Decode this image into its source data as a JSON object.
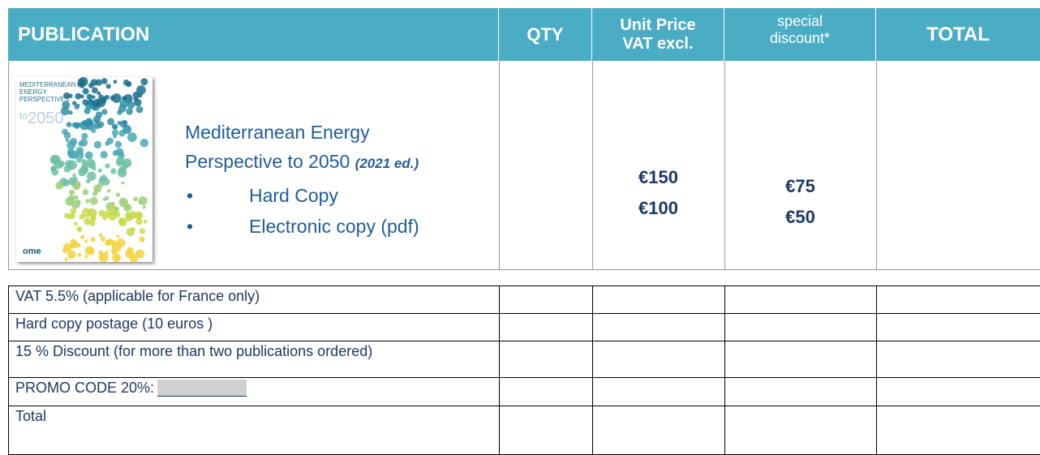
{
  "header": {
    "publication": "PUBLICATION",
    "qty": "QTY",
    "unit_price": [
      "Unit Price",
      "VAT excl."
    ],
    "special_discount": [
      "special",
      "discount*"
    ],
    "total": "TOTAL"
  },
  "product": {
    "cover": {
      "lines": [
        "MEDITERRANEAN",
        "ENERGY",
        "PERSPECTIVES"
      ],
      "to": "to",
      "year": "2050",
      "logo": "ome"
    },
    "title_lines": [
      "Mediterranean Energy",
      "Perspective to 2050"
    ],
    "edition": "(2021 ed.)",
    "items": [
      "Hard Copy",
      "Electronic copy (pdf)"
    ],
    "unit_prices": [
      "€150",
      "€100"
    ],
    "discounts": [
      "€75",
      "€50"
    ]
  },
  "summary": {
    "rows": [
      "VAT 5.5% (applicable for France only)",
      "Hard copy postage  (10 euros )",
      "15 % Discount (for more than two publications ordered)",
      "PROMO CODE 20%:",
      "Total"
    ]
  }
}
